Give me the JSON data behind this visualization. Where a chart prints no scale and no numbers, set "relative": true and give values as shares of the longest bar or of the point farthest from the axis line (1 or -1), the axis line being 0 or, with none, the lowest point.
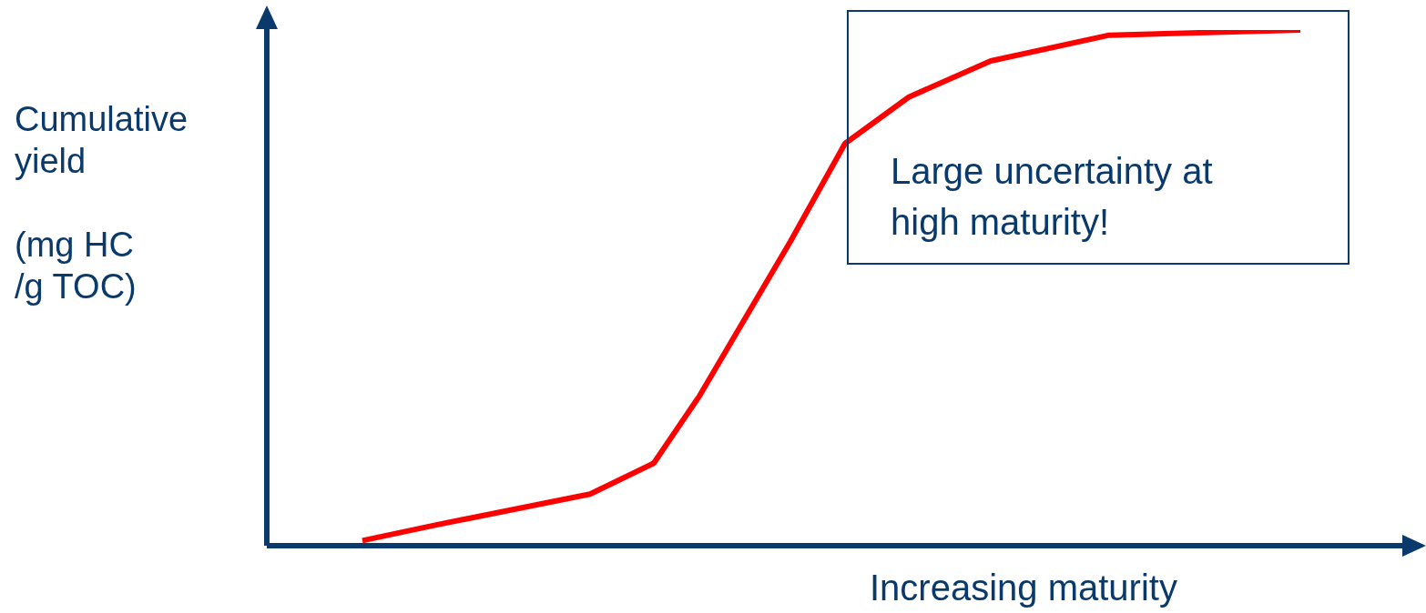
{
  "chart_data": {
    "type": "line",
    "relative": true,
    "xlabel": "Increasing maturity",
    "ylabel": "Cumulative\nyield\n\n(mg HC\n/g TOC)",
    "annotations": [
      "Large uncertainty at high maturity!"
    ],
    "categories": [
      null,
      null,
      null,
      null,
      null,
      null,
      null,
      null,
      null,
      null,
      null,
      null,
      null,
      null,
      null,
      null,
      null,
      null,
      null,
      null,
      null,
      null,
      null,
      null,
      null,
      null,
      null,
      null,
      null,
      null,
      null,
      null,
      null,
      null,
      null,
      null,
      null,
      null,
      null,
      null,
      null,
      null,
      null,
      null,
      null,
      null,
      null,
      null,
      null,
      null,
      null,
      null,
      null,
      null,
      null,
      null,
      null,
      null,
      null,
      null,
      null,
      null,
      null,
      null,
      null,
      null,
      null,
      null,
      null,
      null,
      null,
      null,
      null,
      null,
      null,
      null,
      null,
      null,
      null,
      null,
      null,
      null,
      null,
      null,
      null,
      null,
      null,
      null,
      null,
      null,
      null,
      null,
      null,
      null,
      null,
      null,
      null,
      null,
      null,
      null,
      null,
      null,
      null,
      null
    ],
    "series": [
      {
        "color": "#ff0000",
        "values": [
          0.01,
          null,
          null,
          null,
          null,
          null,
          null,
          null,
          0.04,
          null,
          null,
          null,
          null,
          null,
          null,
          null,
          null,
          null,
          null,
          null,
          null,
          null,
          null,
          null,
          null,
          0.1,
          null,
          null,
          null,
          null,
          null,
          null,
          0.16,
          null,
          null,
          null,
          null,
          0.29,
          null,
          null,
          null,
          null,
          0.44,
          null,
          null,
          null,
          null,
          0.59,
          null,
          null,
          null,
          null,
          null,
          0.78,
          null,
          null,
          null,
          null,
          null,
          null,
          0.87,
          null,
          null,
          null,
          null,
          null,
          null,
          null,
          null,
          0.94,
          null,
          null,
          null,
          null,
          null,
          null,
          null,
          null,
          null,
          null,
          null,
          null,
          0.99,
          null,
          null,
          null,
          null,
          null,
          null,
          null,
          null,
          null,
          null,
          null,
          null,
          null,
          null,
          null,
          null,
          null,
          null,
          null,
          null,
          1.0
        ]
      }
    ]
  }
}
